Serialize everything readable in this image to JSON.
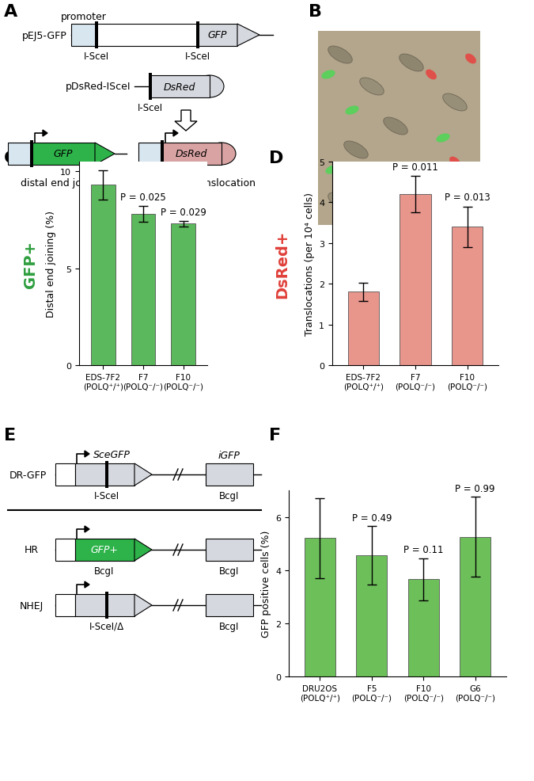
{
  "chart_data": [
    {
      "type": "bar",
      "categories": [
        "EDS-7F2\n(POLQ⁺/⁺)",
        "F7\n(POLQ⁻/⁻)",
        "F10\n(POLQ⁻/⁻)"
      ],
      "values": [
        9.3,
        7.8,
        7.3
      ],
      "errors": [
        0.75,
        0.4,
        0.15
      ],
      "color": "#5cb85c",
      "ylabel": "Distal end joining (%)",
      "side_label": "GFP+",
      "annotations": [
        null,
        "P = 0.025",
        "P = 0.029"
      ],
      "ylim": [
        0,
        10.5
      ],
      "yticks": [
        0,
        5,
        10
      ]
    },
    {
      "type": "bar",
      "categories": [
        "EDS-7F2\n(POLQ⁺/⁺)",
        "F7\n(POLQ⁻/⁻)",
        "F10\n(POLQ⁻/⁻)"
      ],
      "values": [
        1.8,
        4.2,
        3.4
      ],
      "errors": [
        0.23,
        0.45,
        0.5
      ],
      "color": "#e8958c",
      "ylabel": "Translocations (per 10⁴ cells)",
      "side_label": "DsRed+",
      "annotations": [
        null,
        "P = 0.011",
        "P = 0.013"
      ],
      "ylim": [
        0,
        5
      ],
      "yticks": [
        0,
        1,
        2,
        3,
        4,
        5
      ]
    },
    {
      "type": "bar",
      "categories": [
        "DRU2OS\n(POLQ⁺/⁺)",
        "F5\n(POLQ⁻/⁻)",
        "F10\n(POLQ⁻/⁻)",
        "G6\n(POLQ⁻/⁻)"
      ],
      "values": [
        5.2,
        4.55,
        3.65,
        5.25
      ],
      "errors": [
        1.5,
        1.1,
        0.8,
        1.5
      ],
      "color": "#6dbf5a",
      "ylabel": "GFP positive cells (%)",
      "annotations": [
        null,
        "P = 0.49",
        "P = 0.11",
        "P = 0.99"
      ],
      "ylim": [
        0,
        7
      ],
      "yticks": [
        0,
        2,
        4,
        6
      ]
    }
  ],
  "panel_labels": [
    "A",
    "B",
    "C",
    "D",
    "E",
    "F"
  ],
  "diagram_A": {
    "promoter": "promoter",
    "plasmids": [
      {
        "name": "pEJ5-GFP",
        "gene": "GFP",
        "sites": [
          "I-SceI",
          "I-SceI"
        ]
      },
      {
        "name": "pDsRed-ISceI",
        "gene": "DsRed",
        "sites": [
          "I-SceI"
        ]
      }
    ],
    "outcomes": [
      {
        "gene": "GFP",
        "label": "distal end joining"
      },
      {
        "gene": "DsRed",
        "label": "chromosome translocation"
      }
    ]
  },
  "diagram_E": {
    "construct": "DR-GFP",
    "genes": [
      "SceGFP",
      "iGFP"
    ],
    "sites": [
      "I-SceI",
      "BcgI"
    ],
    "outcomes": [
      {
        "name": "HR",
        "gene": "GFP+",
        "sites": [
          "BcgI",
          "BcgI"
        ]
      },
      {
        "name": "NHEJ",
        "sites": [
          "I-SceI/Δ",
          "BcgI"
        ]
      }
    ]
  }
}
